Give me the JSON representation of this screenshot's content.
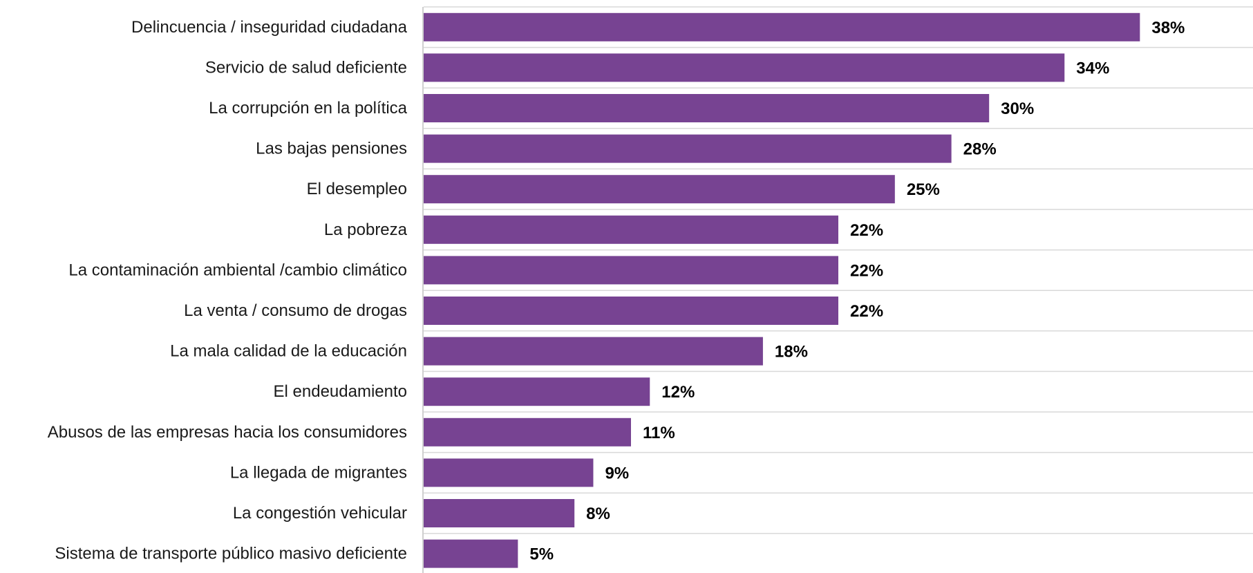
{
  "chart_data": {
    "type": "bar",
    "orientation": "horizontal",
    "categories": [
      "Delincuencia / inseguridad ciudadana",
      "Servicio de salud deficiente",
      "La corrupción en la política",
      "Las bajas pensiones",
      "El desempleo",
      "La pobreza",
      "La contaminación ambiental /cambio climático",
      "La venta / consumo de drogas",
      "La mala calidad de la educación",
      "El endeudamiento",
      "Abusos de las empresas hacia los consumidores",
      "La llegada de migrantes",
      "La congestión vehicular",
      "Sistema de transporte público masivo deficiente"
    ],
    "values": [
      38,
      34,
      30,
      28,
      25,
      22,
      22,
      22,
      18,
      12,
      11,
      9,
      8,
      5
    ],
    "value_labels": [
      "38%",
      "34%",
      "30%",
      "28%",
      "25%",
      "22%",
      "22%",
      "22%",
      "18%",
      "12%",
      "11%",
      "9%",
      "8%",
      "5%"
    ],
    "value_suffix": "%",
    "title": "",
    "xlabel": "",
    "ylabel": "",
    "xlim": [
      0,
      44
    ],
    "grid": "horizontal separators between categories",
    "legend": "none",
    "colors": {
      "bar": "#774392",
      "grid": "#d9d9d9",
      "axis": "#bfbfbf",
      "label": "#1a1a1a",
      "value": "#000000"
    }
  }
}
